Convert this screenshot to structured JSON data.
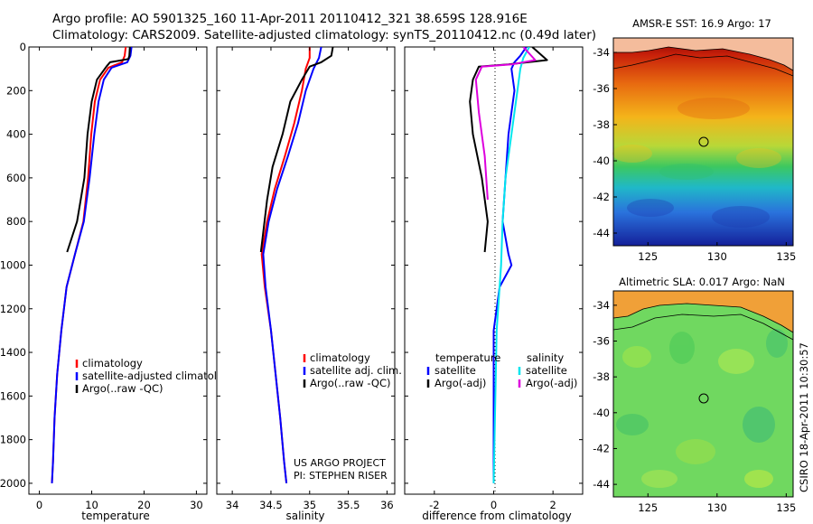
{
  "header": {
    "line1": "Argo profile: AO 5901325_160 11-Apr-2011 20110412_321 38.659S 128.916E",
    "line2": "Climatology: CARS2009. Satellite-adjusted climatology: synTS_20110412.nc (0.49d later)"
  },
  "side_label": "CSIRO 18-Apr-2011 10:30:57",
  "colors": {
    "climatology": "#ff0000",
    "satellite": "#0000ff",
    "argo": "#000000",
    "salinity_satellite": "#00e5ee",
    "salinity_argo": "#dd00dd"
  },
  "chart_data": [
    {
      "type": "line",
      "xlabel": "temperature",
      "ylabel": "",
      "xlim": [
        -2,
        32
      ],
      "ylim": [
        2050,
        0
      ],
      "xticks": [
        "0",
        "10",
        "20",
        "30"
      ],
      "yticks": [
        "0",
        "200",
        "400",
        "600",
        "800",
        "1000",
        "1200",
        "1400",
        "1600",
        "1800",
        "2000"
      ],
      "legend": [
        "climatology",
        "satellite-adjusted climatology",
        "Argo(..raw -QC)"
      ],
      "series": [
        {
          "name": "climatology",
          "color": "#ff0000",
          "points": [
            [
              16.5,
              0
            ],
            [
              16.3,
              40
            ],
            [
              15.8,
              70
            ],
            [
              13.2,
              95
            ],
            [
              11.6,
              150
            ],
            [
              10.6,
              250
            ],
            [
              9.9,
              400
            ],
            [
              9.3,
              600
            ],
            [
              8.4,
              800
            ],
            [
              6.8,
              950
            ],
            [
              5.2,
              1100
            ],
            [
              4.2,
              1300
            ],
            [
              3.4,
              1500
            ],
            [
              2.9,
              1700
            ],
            [
              2.6,
              1900
            ],
            [
              2.4,
              2000
            ]
          ]
        },
        {
          "name": "satellite-adjusted climatology",
          "color": "#0000ff",
          "points": [
            [
              17.6,
              0
            ],
            [
              17.4,
              40
            ],
            [
              16.8,
              70
            ],
            [
              13.8,
              95
            ],
            [
              12.3,
              150
            ],
            [
              11.3,
              250
            ],
            [
              10.5,
              400
            ],
            [
              9.6,
              600
            ],
            [
              8.5,
              800
            ],
            [
              6.8,
              950
            ],
            [
              5.2,
              1100
            ],
            [
              4.2,
              1300
            ],
            [
              3.4,
              1500
            ],
            [
              2.9,
              1700
            ],
            [
              2.6,
              1900
            ],
            [
              2.4,
              2000
            ]
          ]
        },
        {
          "name": "Argo(..raw -QC)",
          "color": "#000000",
          "points": [
            [
              17.3,
              0
            ],
            [
              17.2,
              40
            ],
            [
              17.0,
              55
            ],
            [
              13.5,
              70
            ],
            [
              12.8,
              90
            ],
            [
              11.0,
              150
            ],
            [
              10.0,
              250
            ],
            [
              9.2,
              400
            ],
            [
              8.6,
              600
            ],
            [
              7.2,
              800
            ],
            [
              5.3,
              940
            ]
          ]
        }
      ]
    },
    {
      "type": "line",
      "xlabel": "salinity",
      "ylabel": "",
      "xlim": [
        33.8,
        36.1
      ],
      "ylim": [
        2050,
        0
      ],
      "xticks": [
        "34",
        "34.5",
        "35",
        "35.5",
        "36"
      ],
      "yticks": [],
      "legend": [
        "climatology",
        "satellite adj. clim.",
        "Argo(..raw -QC)"
      ],
      "annotations": [
        "US ARGO PROJECT",
        "PI: STEPHEN RISER"
      ],
      "series": [
        {
          "name": "climatology",
          "color": "#ff0000",
          "points": [
            [
              35.0,
              0
            ],
            [
              35.0,
              50
            ],
            [
              34.95,
              100
            ],
            [
              34.9,
              200
            ],
            [
              34.8,
              350
            ],
            [
              34.68,
              500
            ],
            [
              34.55,
              650
            ],
            [
              34.45,
              800
            ],
            [
              34.38,
              950
            ],
            [
              34.42,
              1100
            ],
            [
              34.5,
              1300
            ],
            [
              34.56,
              1500
            ],
            [
              34.62,
              1700
            ],
            [
              34.67,
              1900
            ],
            [
              34.7,
              2000
            ]
          ]
        },
        {
          "name": "satellite adj. clim.",
          "color": "#0000ff",
          "points": [
            [
              35.15,
              0
            ],
            [
              35.12,
              50
            ],
            [
              35.05,
              100
            ],
            [
              34.95,
              200
            ],
            [
              34.85,
              350
            ],
            [
              34.72,
              500
            ],
            [
              34.58,
              650
            ],
            [
              34.47,
              800
            ],
            [
              34.4,
              950
            ],
            [
              34.43,
              1100
            ],
            [
              34.5,
              1300
            ],
            [
              34.56,
              1500
            ],
            [
              34.62,
              1700
            ],
            [
              34.67,
              1900
            ],
            [
              34.7,
              2000
            ]
          ]
        },
        {
          "name": "Argo(..raw -QC)",
          "color": "#000000",
          "points": [
            [
              35.3,
              0
            ],
            [
              35.28,
              40
            ],
            [
              35.15,
              70
            ],
            [
              35.0,
              90
            ],
            [
              34.9,
              150
            ],
            [
              34.75,
              250
            ],
            [
              34.65,
              400
            ],
            [
              34.52,
              550
            ],
            [
              34.45,
              700
            ],
            [
              34.4,
              850
            ],
            [
              34.37,
              940
            ]
          ]
        }
      ]
    },
    {
      "type": "line",
      "xlabel": "difference from climatology",
      "ylabel": "",
      "xlim": [
        -3,
        3
      ],
      "ylim": [
        2050,
        0
      ],
      "xticks": [
        "-2",
        "0",
        "2"
      ],
      "yticks": [],
      "legend": [
        "temperature",
        "satellite",
        "Argo(-adj)",
        "salinity",
        "satellite",
        "Argo(-adj)"
      ],
      "series": [
        {
          "name": "temperature satellite",
          "color": "#0000ff",
          "points": [
            [
              1.1,
              0
            ],
            [
              0.9,
              40
            ],
            [
              0.7,
              70
            ],
            [
              0.6,
              100
            ],
            [
              0.7,
              200
            ],
            [
              0.6,
              300
            ],
            [
              0.5,
              400
            ],
            [
              0.4,
              600
            ],
            [
              0.3,
              800
            ],
            [
              0.5,
              950
            ],
            [
              0.6,
              1000
            ],
            [
              0.2,
              1100
            ],
            [
              0.0,
              1300
            ],
            [
              0.0,
              2000
            ]
          ]
        },
        {
          "name": "temperature Argo(-adj)",
          "color": "#000000",
          "points": [
            [
              1.3,
              0
            ],
            [
              1.8,
              60
            ],
            [
              0.5,
              80
            ],
            [
              -0.5,
              90
            ],
            [
              -0.7,
              150
            ],
            [
              -0.8,
              250
            ],
            [
              -0.7,
              400
            ],
            [
              -0.4,
              600
            ],
            [
              -0.2,
              800
            ],
            [
              -0.3,
              940
            ]
          ]
        },
        {
          "name": "salinity satellite",
          "color": "#00e5ee",
          "points": [
            [
              1.2,
              0
            ],
            [
              1.0,
              50
            ],
            [
              0.9,
              100
            ],
            [
              0.8,
              200
            ],
            [
              0.6,
              400
            ],
            [
              0.4,
              600
            ],
            [
              0.3,
              800
            ],
            [
              0.25,
              1000
            ],
            [
              0.1,
              1300
            ],
            [
              0.0,
              2000
            ]
          ]
        },
        {
          "name": "salinity Argo(-adj)",
          "color": "#dd00dd",
          "points": [
            [
              1.0,
              0
            ],
            [
              1.4,
              60
            ],
            [
              0.6,
              80
            ],
            [
              -0.4,
              90
            ],
            [
              -0.6,
              150
            ],
            [
              -0.5,
              300
            ],
            [
              -0.3,
              500
            ],
            [
              -0.2,
              700
            ]
          ]
        }
      ]
    },
    {
      "type": "heatmap",
      "title": "AMSR-E SST: 16.9 Argo: 17",
      "xticks": [
        "125",
        "130",
        "135"
      ],
      "yticks": [
        "-34",
        "-36",
        "-38",
        "-40",
        "-42",
        "-44"
      ]
    },
    {
      "type": "heatmap",
      "title": "Altimetric SLA: 0.017 Argo: NaN",
      "xticks": [
        "125",
        "130",
        "135"
      ],
      "yticks": [
        "-34",
        "-36",
        "-38",
        "-40",
        "-42",
        "-44"
      ]
    }
  ]
}
